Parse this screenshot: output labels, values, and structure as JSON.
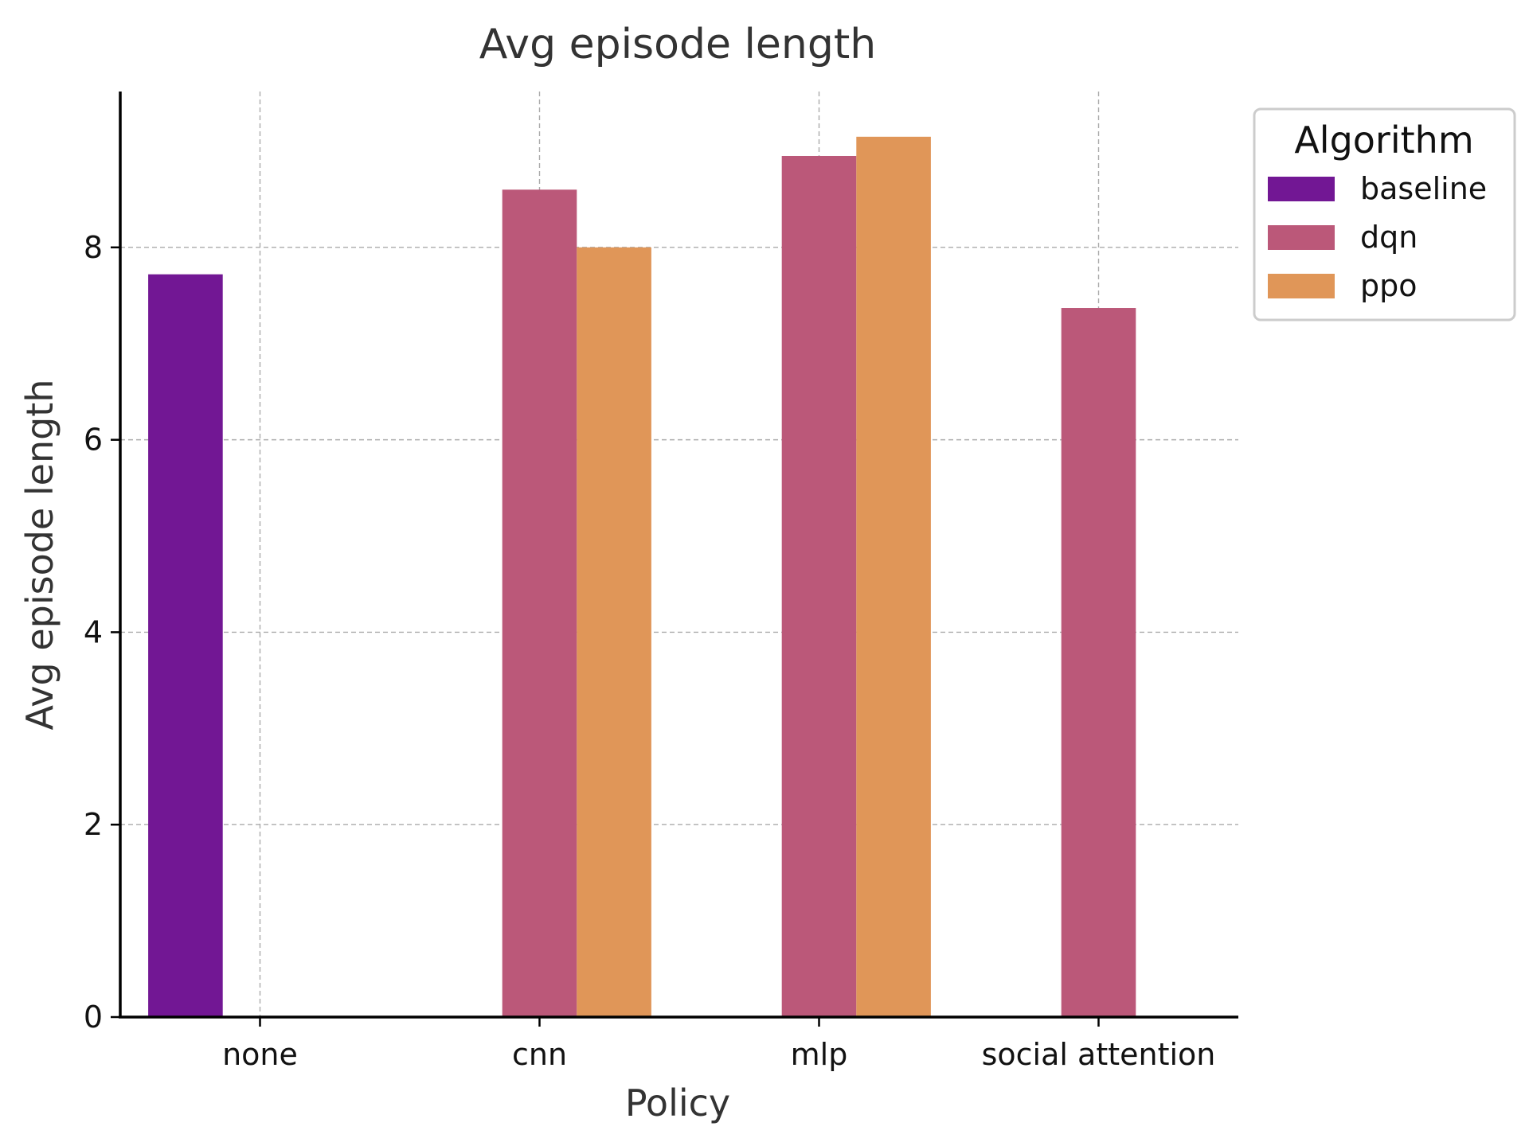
{
  "chart_data": {
    "type": "bar",
    "title": "Avg episode length",
    "xlabel": "Policy",
    "ylabel": "Avg episode length",
    "categories": [
      "none",
      "cnn",
      "mlp",
      "social attention"
    ],
    "series": [
      {
        "name": "baseline",
        "color": "#721794",
        "values": [
          7.72,
          null,
          null,
          null
        ]
      },
      {
        "name": "dqn",
        "color": "#bb5879",
        "values": [
          null,
          8.6,
          8.95,
          7.37
        ]
      },
      {
        "name": "ppo",
        "color": "#e09658",
        "values": [
          null,
          8.0,
          9.15,
          null
        ]
      }
    ],
    "ylim": [
      0,
      9.62
    ],
    "yticks": [
      0,
      2,
      4,
      6,
      8
    ],
    "grid": true,
    "legend": {
      "title": "Algorithm",
      "placement": "outside-top-right"
    }
  }
}
